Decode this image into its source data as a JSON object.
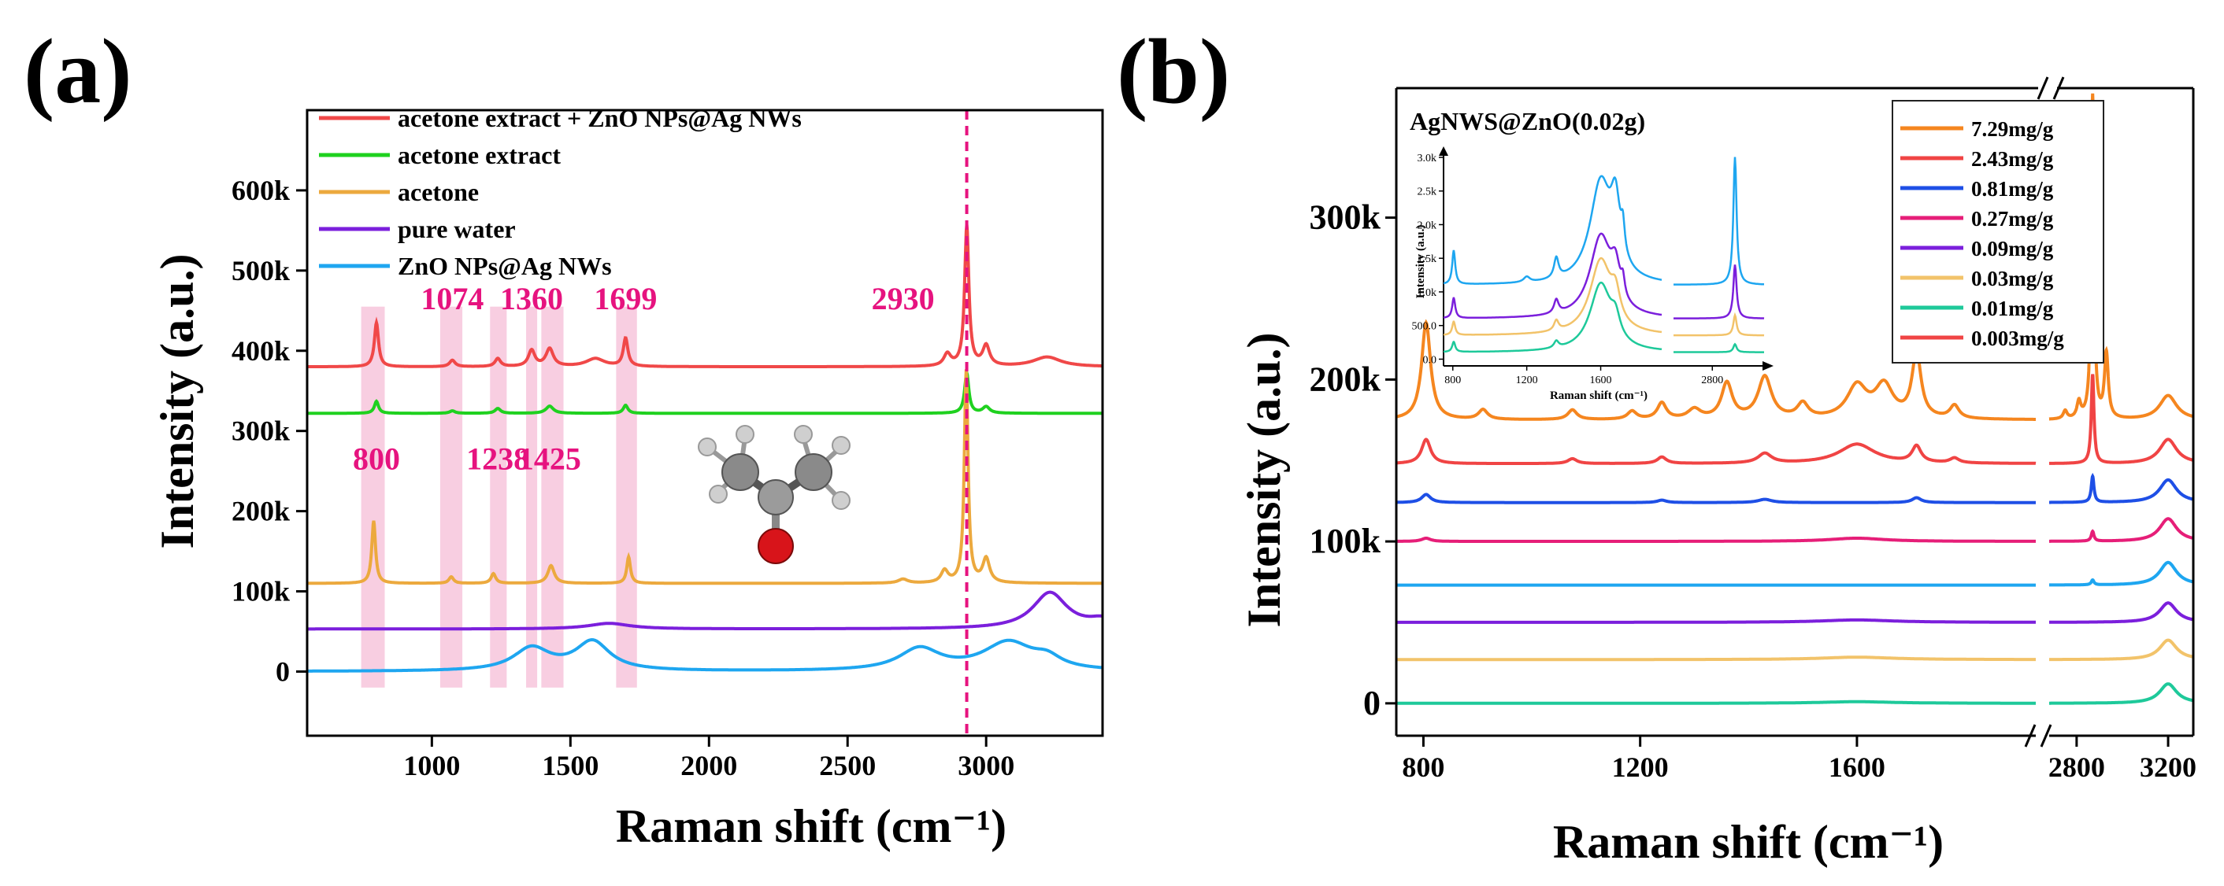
{
  "chart_data": [
    {
      "panel": "(a)",
      "type": "line",
      "xlabel": "Raman shift (cm⁻¹)",
      "ylabel": "Intensity (a.u.)",
      "xlim": [
        550,
        3420
      ],
      "ylim": [
        -80000,
        700000
      ],
      "x_ticks": [
        1000,
        1500,
        2000,
        2500,
        3000
      ],
      "y_ticks": [
        {
          "value": 0,
          "label": "0"
        },
        {
          "value": 100000,
          "label": "100k"
        },
        {
          "value": 200000,
          "label": "200k"
        },
        {
          "value": 300000,
          "label": "300k"
        },
        {
          "value": 400000,
          "label": "400k"
        },
        {
          "value": 500000,
          "label": "500k"
        },
        {
          "value": 600000,
          "label": "600k"
        }
      ],
      "legend_position": "top-left",
      "series": [
        {
          "name": "acetone extract + ZnO NPs@Ag NWs",
          "color": "#f04848",
          "baseline": 380000,
          "peaks": [
            [
              800,
              55000,
              9
            ],
            [
              1074,
              8000,
              12
            ],
            [
              1238,
              10000,
              12
            ],
            [
              1360,
              20000,
              14
            ],
            [
              1425,
              22000,
              16
            ],
            [
              1699,
              35000,
              10
            ],
            [
              1590,
              10000,
              40
            ],
            [
              2860,
              15000,
              15
            ],
            [
              2930,
              175000,
              9
            ],
            [
              3000,
              25000,
              15
            ],
            [
              3220,
              12000,
              60
            ]
          ]
        },
        {
          "name": "acetone extract",
          "color": "#1fd11f",
          "baseline": 322000,
          "peaks": [
            [
              800,
              15000,
              9
            ],
            [
              1074,
              3000,
              12
            ],
            [
              1238,
              6000,
              12
            ],
            [
              1425,
              9000,
              16
            ],
            [
              1699,
              10000,
              10
            ],
            [
              2930,
              50000,
              9
            ],
            [
              3000,
              8000,
              15
            ]
          ]
        },
        {
          "name": "acetone",
          "color": "#eca93e",
          "baseline": 110000,
          "peaks": [
            [
              790,
              78000,
              8
            ],
            [
              1070,
              8000,
              10
            ],
            [
              1222,
              12000,
              10
            ],
            [
              1430,
              22000,
              14
            ],
            [
              1710,
              33000,
              8
            ],
            [
              2700,
              5000,
              20
            ],
            [
              2850,
              15000,
              15
            ],
            [
              2928,
              265000,
              8
            ],
            [
              3000,
              30000,
              15
            ]
          ]
        },
        {
          "name": "pure water",
          "color": "#7b1fdc",
          "baseline": 53000,
          "peaks": [
            [
              1640,
              7000,
              90
            ],
            [
              3230,
              45000,
              75
            ],
            [
              3420,
              10000,
              60
            ]
          ]
        },
        {
          "name": "ZnO NPs@Ag NWs",
          "color": "#1ea6f0",
          "baseline": 0,
          "peaks": [
            [
              1360,
              28000,
              80
            ],
            [
              1580,
              36000,
              75
            ],
            [
              2760,
              27000,
              90
            ],
            [
              3080,
              35000,
              110
            ],
            [
              3220,
              12000,
              60
            ]
          ]
        }
      ],
      "highlight_bands": [
        [
          745,
          830
        ],
        [
          1030,
          1110
        ],
        [
          1210,
          1270
        ],
        [
          1340,
          1380
        ],
        [
          1395,
          1475
        ],
        [
          1665,
          1740
        ]
      ],
      "reference_line": 2930,
      "peak_labels": [
        {
          "text": "800",
          "x": 800,
          "y": 252000
        },
        {
          "text": "1074",
          "x": 1074,
          "y": 452000
        },
        {
          "text": "1238",
          "x": 1238,
          "y": 252000
        },
        {
          "text": "1360",
          "x": 1360,
          "y": 452000
        },
        {
          "text": "1425",
          "x": 1425,
          "y": 252000
        },
        {
          "text": "1699",
          "x": 1699,
          "y": 452000
        },
        {
          "text": "2930",
          "x": 2700,
          "y": 452000
        }
      ]
    },
    {
      "panel": "(b)",
      "type": "line",
      "title": "AgNWS@ZnO(0.02g)",
      "xlabel": "Raman shift (cm⁻¹)",
      "ylabel": "Intensity (a.u.)",
      "x_segments": [
        [
          750,
          1930
        ],
        [
          2680,
          3310
        ]
      ],
      "ylim": [
        -20000,
        380000
      ],
      "x_ticks": [
        {
          "value": 800,
          "label": "800"
        },
        {
          "value": 1200,
          "label": "1200"
        },
        {
          "value": 1600,
          "label": "1600"
        },
        {
          "value": 2800,
          "label": "2800"
        },
        {
          "value": 3200,
          "label": "3200"
        }
      ],
      "y_ticks": [
        {
          "value": 0,
          "label": "0"
        },
        {
          "value": 100000,
          "label": "100k"
        },
        {
          "value": 200000,
          "label": "200k"
        },
        {
          "value": 300000,
          "label": "300k"
        }
      ],
      "legend_position": "top-right",
      "series": [
        {
          "name": "7.29mg/g",
          "color": "#f5861f",
          "baseline": 175000,
          "peaks": [
            [
              805,
              60000,
              10
            ],
            [
              910,
              6000,
              10
            ],
            [
              1075,
              6000,
              10
            ],
            [
              1185,
              5000,
              10
            ],
            [
              1240,
              10000,
              10
            ],
            [
              1300,
              6000,
              14
            ],
            [
              1360,
              22000,
              12
            ],
            [
              1430,
              26000,
              15
            ],
            [
              1500,
              9000,
              12
            ],
            [
              1600,
              20000,
              22
            ],
            [
              1650,
              20000,
              20
            ],
            [
              1710,
              40000,
              10
            ],
            [
              1780,
              8000,
              10
            ],
            [
              2750,
              5000,
              10
            ],
            [
              2810,
              10000,
              10
            ],
            [
              2870,
              200000,
              7
            ],
            [
              2930,
              40000,
              10
            ],
            [
              3200,
              15000,
              45
            ]
          ]
        },
        {
          "name": "2.43mg/g",
          "color": "#f04444",
          "baseline": 148000,
          "peaks": [
            [
              805,
              15000,
              10
            ],
            [
              1075,
              3000,
              10
            ],
            [
              1240,
              4000,
              10
            ],
            [
              1430,
              6000,
              15
            ],
            [
              1600,
              12000,
              40
            ],
            [
              1710,
              10000,
              10
            ],
            [
              1780,
              3000,
              10
            ],
            [
              2870,
              55000,
              7
            ],
            [
              3200,
              15000,
              45
            ]
          ]
        },
        {
          "name": "0.81mg/g",
          "color": "#1e4fe6",
          "baseline": 124000,
          "peaks": [
            [
              805,
              5000,
              10
            ],
            [
              1240,
              1500,
              10
            ],
            [
              1430,
              2000,
              15
            ],
            [
              1710,
              3000,
              10
            ],
            [
              2870,
              16000,
              7
            ],
            [
              3200,
              14000,
              45
            ]
          ]
        },
        {
          "name": "0.27mg/g",
          "color": "#e61e78",
          "baseline": 100000,
          "peaks": [
            [
              805,
              2000,
              10
            ],
            [
              1600,
              2000,
              60
            ],
            [
              2870,
              6000,
              7
            ],
            [
              3200,
              14000,
              45
            ]
          ]
        },
        {
          "name": "0.09mg/g",
          "color": "#7b1fdc",
          "baseline": 50000,
          "peaks": [
            [
              1600,
              1500,
              80
            ],
            [
              3200,
              12000,
              45
            ]
          ]
        },
        {
          "name": "0.03mg/g",
          "color": "#f2c36a",
          "baseline": 27000,
          "peaks": [
            [
              1600,
              1500,
              80
            ],
            [
              3200,
              12000,
              45
            ]
          ]
        },
        {
          "name": "0.01mg/g",
          "color": "#1ec99a",
          "baseline": 0,
          "peaks": [
            [
              1600,
              1000,
              80
            ],
            [
              3200,
              12000,
              45
            ]
          ]
        },
        {
          "name": "0.003mg/g",
          "color": "#f04444",
          "baseline": 73000,
          "peaks": [
            [
              2870,
              3000,
              7
            ],
            [
              3200,
              14000,
              45
            ]
          ]
        }
      ],
      "trace_colors": {
        "0.003mg/g": "#1ea6f0"
      },
      "inset": {
        "xlabel": "Raman shift (cm⁻¹)",
        "ylabel": "Intensity (a.u.)",
        "y_ticks": [
          {
            "value": 0,
            "label": "0.0"
          },
          {
            "value": 500,
            "label": "500.0"
          },
          {
            "value": 1000,
            "label": "1.0k"
          },
          {
            "value": 1500,
            "label": "1.5k"
          },
          {
            "value": 2000,
            "label": "2.0k"
          },
          {
            "value": 2500,
            "label": "2.5k"
          },
          {
            "value": 3000,
            "label": "3.0k"
          }
        ],
        "x_ticks": [
          {
            "value": 800,
            "label": "800"
          },
          {
            "value": 1200,
            "label": "1200"
          },
          {
            "value": 1600,
            "label": "1600"
          },
          {
            "value": 2800,
            "label": "2800"
          }
        ],
        "series": [
          {
            "color": "#1ea6f0",
            "baseline": 1100,
            "peaks": [
              [
                805,
                500,
                10
              ],
              [
                1200,
                80,
                20
              ],
              [
                1360,
                300,
                15
              ],
              [
                1600,
                1500,
                70
              ],
              [
                1680,
                900,
                30
              ],
              [
                1720,
                400,
                12
              ],
              [
                2870,
                1900,
                6
              ]
            ]
          },
          {
            "color": "#7b1fdc",
            "baseline": 600,
            "peaks": [
              [
                805,
                300,
                10
              ],
              [
                1360,
                200,
                15
              ],
              [
                1600,
                1200,
                70
              ],
              [
                1680,
                500,
                30
              ],
              [
                1720,
                250,
                12
              ],
              [
                2870,
                800,
                6
              ]
            ]
          },
          {
            "color": "#f2c36a",
            "baseline": 350,
            "peaks": [
              [
                805,
                200,
                10
              ],
              [
                1360,
                150,
                15
              ],
              [
                1600,
                1100,
                70
              ],
              [
                1680,
                400,
                30
              ],
              [
                2870,
                300,
                6
              ]
            ]
          },
          {
            "color": "#1ec99a",
            "baseline": 100,
            "peaks": [
              [
                805,
                150,
                10
              ],
              [
                1360,
                100,
                15
              ],
              [
                1600,
                1000,
                70
              ],
              [
                1680,
                300,
                30
              ],
              [
                2870,
                120,
                6
              ]
            ]
          }
        ]
      }
    }
  ]
}
